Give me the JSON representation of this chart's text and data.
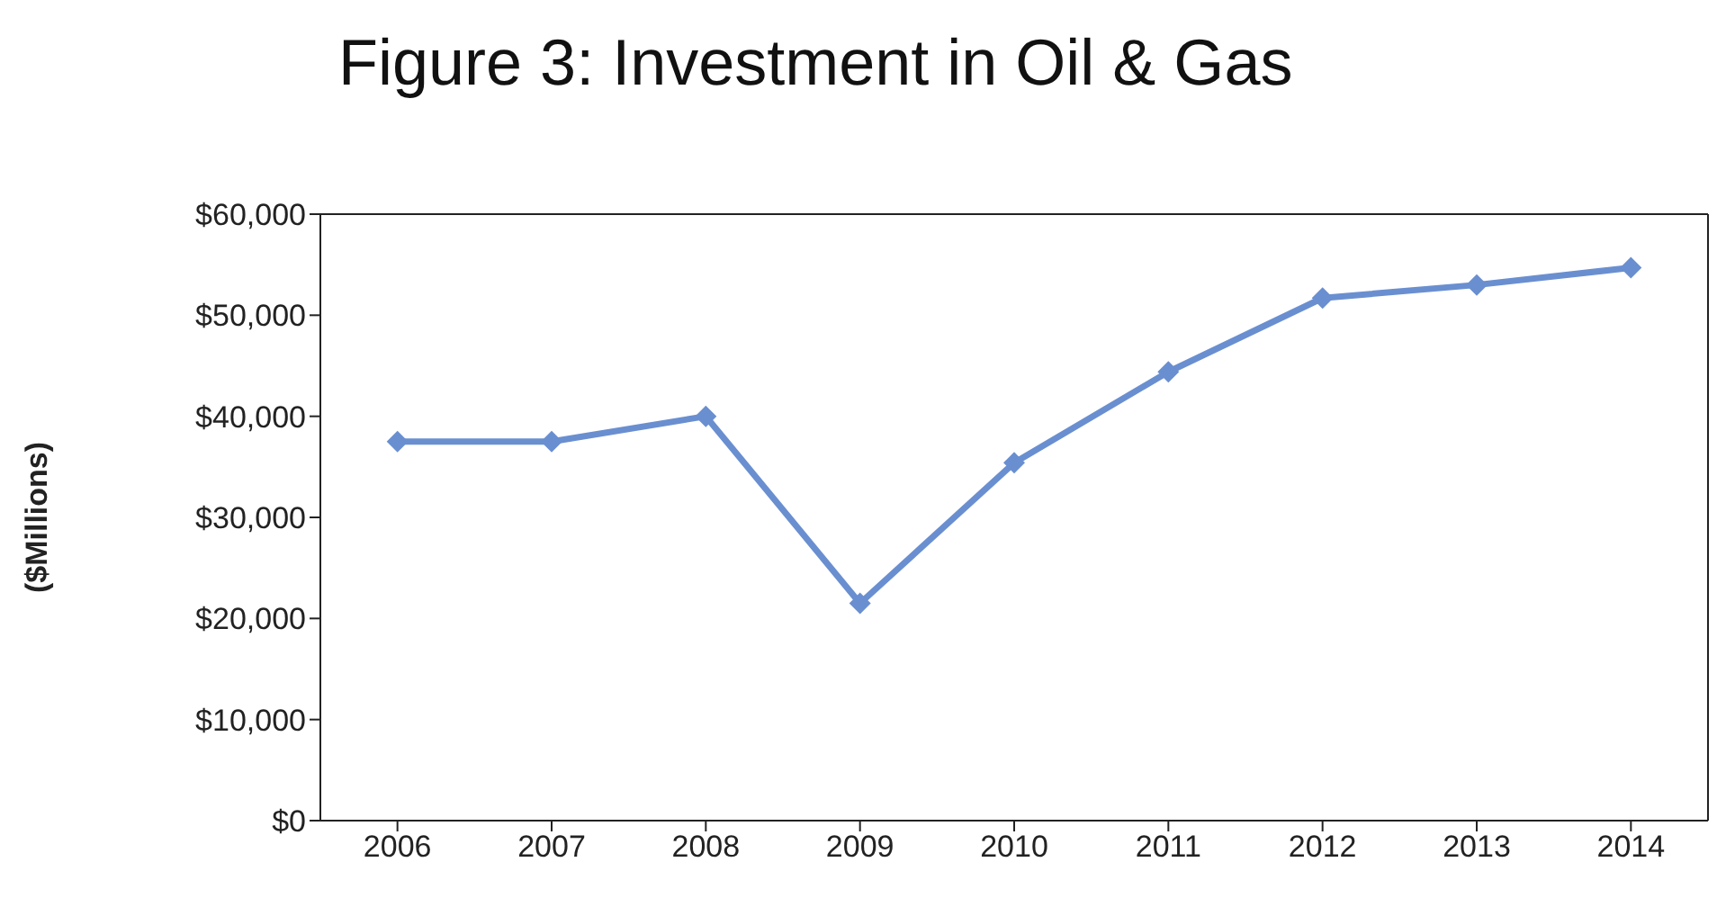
{
  "chart_data": {
    "type": "line",
    "title": "Figure 3: Investment in Oil & Gas",
    "ylabel": "($Millions)",
    "categories": [
      "2006",
      "2007",
      "2008",
      "2009",
      "2010",
      "2011",
      "2012",
      "2013",
      "2014"
    ],
    "series": [
      {
        "color": "#6a8fd0",
        "values": [
          37500,
          37500,
          40000,
          21500,
          35400,
          44400,
          51700,
          53000,
          54700
        ]
      }
    ],
    "ylim": [
      0,
      60000
    ],
    "yticks": [
      {
        "value": 0,
        "label": "$0"
      },
      {
        "value": 10000,
        "label": "$10,000"
      },
      {
        "value": 20000,
        "label": "$20,000"
      },
      {
        "value": 30000,
        "label": "$30,000"
      },
      {
        "value": 40000,
        "label": "$40,000"
      },
      {
        "value": 50000,
        "label": "$50,000"
      },
      {
        "value": 60000,
        "label": "$60,000"
      }
    ],
    "grid": false,
    "legend": false,
    "marker": "diamond",
    "line_style": "solid"
  }
}
